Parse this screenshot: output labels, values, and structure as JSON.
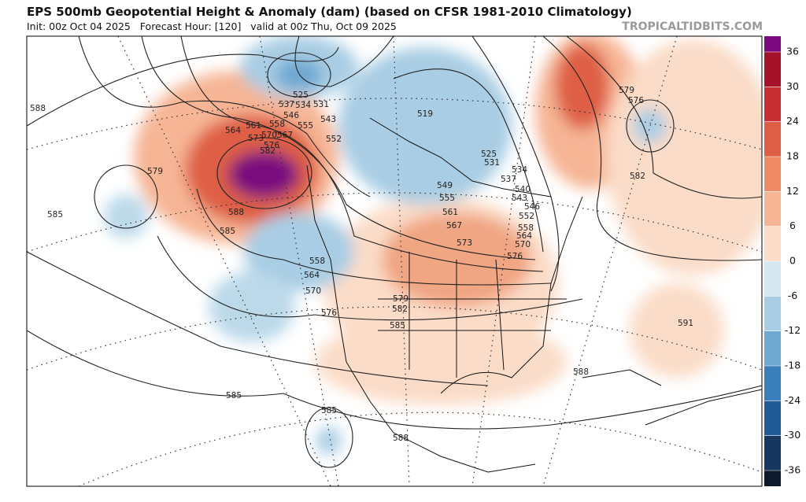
{
  "header": {
    "title": "EPS 500mb Geopotential Height & Anomaly (dam) (based on CFSR 1981-2010 Climatology)",
    "subtitle": "Init: 00z Oct 04 2025   Forecast Hour: [120]   valid at 00z Thu, Oct 09 2025",
    "source": "TROPICALTIDBITS.COM"
  },
  "colorbar": {
    "ticks": [
      36,
      30,
      24,
      18,
      12,
      6,
      0,
      -6,
      -12,
      -18,
      -24,
      -30,
      -36
    ],
    "colors": [
      "#a5122a",
      "#c62f33",
      "#de5e45",
      "#ee8a66",
      "#f6b595",
      "#fbdcc8",
      "#d6e8f2",
      "#a9cde4",
      "#6fa8d1",
      "#3a7ebc",
      "#205a97",
      "#17375f"
    ]
  },
  "contour_labels": [
    588,
    579,
    585,
    585,
    588,
    564,
    561,
    558,
    555,
    543,
    552,
    537,
    534,
    531,
    525,
    546,
    567,
    570,
    573,
    576,
    582,
    519,
    525,
    531,
    534,
    537,
    540,
    543,
    546,
    552,
    558,
    564,
    570,
    576,
    549,
    555,
    561,
    567,
    573,
    558,
    564,
    570,
    576,
    579,
    582,
    585,
    579,
    576,
    582,
    591,
    588,
    585,
    585,
    588
  ]
}
